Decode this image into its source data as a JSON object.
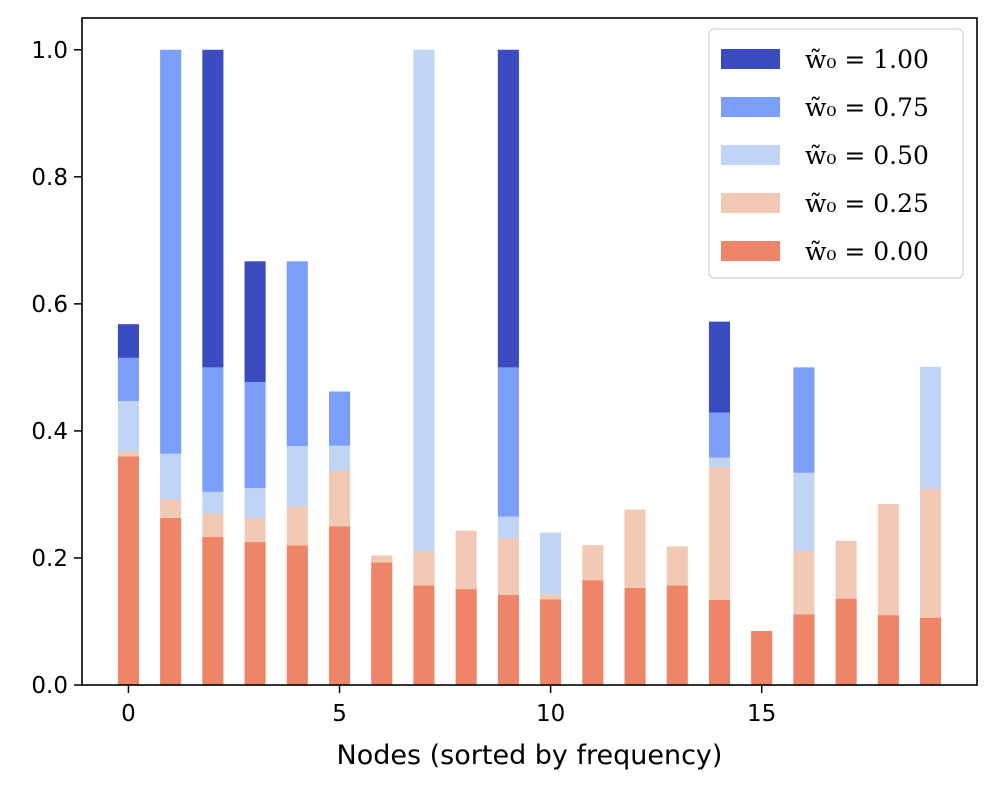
{
  "chart_data": {
    "type": "bar",
    "stacked": true,
    "title": "",
    "xlabel": "Nodes (sorted by frequency)",
    "ylabel": "",
    "xlim": [
      -1.1,
      20.1
    ],
    "ylim": [
      0,
      1.05
    ],
    "xticks": [
      0,
      5,
      10,
      15
    ],
    "yticks": [
      0.0,
      0.2,
      0.4,
      0.6,
      0.8,
      1.0
    ],
    "ytick_labels": [
      "0.0",
      "0.2",
      "0.4",
      "0.6",
      "0.8",
      "1.0"
    ],
    "xtick_labels": [
      "0",
      "5",
      "10",
      "15"
    ],
    "bar_width": 0.5,
    "legend_position": "top-right",
    "categories": [
      0,
      1,
      2,
      3,
      4,
      5,
      6,
      7,
      8,
      9,
      10,
      11,
      12,
      13,
      14,
      15,
      16,
      17,
      18,
      19
    ],
    "legend": [
      {
        "key": "w100",
        "label": "w̃₀ = 1.00",
        "color": "#3b4cc0"
      },
      {
        "key": "w075",
        "label": "w̃₀ = 0.75",
        "color": "#7b9ff9"
      },
      {
        "key": "w050",
        "label": "w̃₀ = 0.50",
        "color": "#c0d4f5"
      },
      {
        "key": "w025",
        "label": "w̃₀ = 0.25",
        "color": "#f2c9b4"
      },
      {
        "key": "w000",
        "label": "w̃₀ = 0.00",
        "color": "#ee8468"
      }
    ],
    "series": [
      {
        "name": "w̃₀ = 0.00",
        "key": "w000",
        "color": "#ee8468",
        "values": [
          0.36,
          0.263,
          0.233,
          0.225,
          0.22,
          0.25,
          0.193,
          0.157,
          0.151,
          0.142,
          0.135,
          0.165,
          0.153,
          0.157,
          0.134,
          0.085,
          0.111,
          0.136,
          0.11,
          0.106
        ]
      },
      {
        "name": "w̃₀ = 0.25",
        "key": "w025",
        "color": "#f2c9b4",
        "values": [
          0.007,
          0.029,
          0.037,
          0.038,
          0.062,
          0.087,
          0.011,
          0.054,
          0.092,
          0.089,
          0.008,
          0.055,
          0.123,
          0.061,
          0.209,
          0.0,
          0.1,
          0.091,
          0.175,
          0.203
        ]
      },
      {
        "name": "w̃₀ = 0.50",
        "key": "w050",
        "color": "#c0d4f5",
        "values": [
          0.08,
          0.072,
          0.034,
          0.047,
          0.094,
          0.04,
          0.0,
          0.789,
          0.0,
          0.034,
          0.097,
          0.0,
          0.0,
          0.0,
          0.015,
          0.0,
          0.123,
          0.0,
          0.0,
          0.192
        ]
      },
      {
        "name": "w̃₀ = 0.75",
        "key": "w075",
        "color": "#7b9ff9",
        "values": [
          0.068,
          0.636,
          0.196,
          0.167,
          0.291,
          0.085,
          0.0,
          0.0,
          0.0,
          0.235,
          0.0,
          0.0,
          0.0,
          0.0,
          0.071,
          0.0,
          0.166,
          0.0,
          0.0,
          0.0
        ]
      },
      {
        "name": "w̃₀ = 1.00",
        "key": "w100",
        "color": "#3b4cc0",
        "values": [
          0.053,
          0.0,
          0.5,
          0.19,
          0.0,
          0.0,
          0.0,
          0.0,
          0.0,
          0.5,
          0.0,
          0.0,
          0.0,
          0.0,
          0.143,
          0.0,
          0.0,
          0.0,
          0.0,
          0.0
        ]
      }
    ]
  }
}
